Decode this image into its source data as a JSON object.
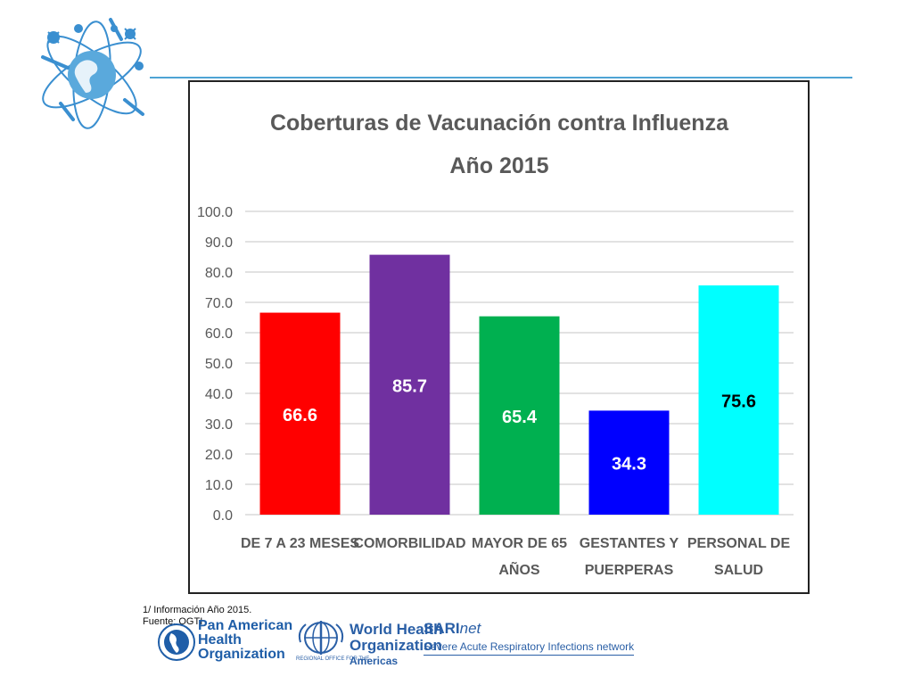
{
  "logos": {
    "paho_lines": [
      "Pan American",
      "Health",
      "Organization"
    ],
    "who_lines": [
      "World Health",
      "Organization"
    ],
    "who_regional": "REGIONAL OFFICE FOR THE",
    "who_americas": "Americas",
    "sari_name": "SARI",
    "sari_name_suffix": "net",
    "sari_subtitle": "Severe Acute Respiratory Infections network"
  },
  "footnotes": {
    "line1": "1/ Información Año 2015.",
    "line2": "Fuente: OGTI"
  },
  "chart_data": {
    "type": "bar",
    "title": "Coberturas de Vacunación contra Influenza",
    "subtitle": "Año 2015",
    "categories": [
      [
        "DE 7 A 23 MESES"
      ],
      [
        "COMORBILIDAD"
      ],
      [
        "MAYOR DE 65",
        "AÑOS"
      ],
      [
        "GESTANTES Y",
        "PUERPERAS"
      ],
      [
        "PERSONAL DE",
        "SALUD"
      ]
    ],
    "values": [
      66.6,
      85.7,
      65.4,
      34.3,
      75.6
    ],
    "data_labels": [
      "66.6",
      "85.7",
      "65.4",
      "34.3",
      "75.6"
    ],
    "bar_colors": [
      "#ff0000",
      "#7030a0",
      "#00b050",
      "#0000ff",
      "#00ffff"
    ],
    "label_colors": [
      "#ffffff",
      "#ffffff",
      "#ffffff",
      "#ffffff",
      "#000000"
    ],
    "ylim": [
      0,
      100
    ],
    "yticks": [
      "0.0",
      "10.0",
      "20.0",
      "30.0",
      "40.0",
      "50.0",
      "60.0",
      "70.0",
      "80.0",
      "90.0",
      "100.0"
    ],
    "grid": true,
    "legend": "none",
    "xlabel": "",
    "ylabel": ""
  }
}
